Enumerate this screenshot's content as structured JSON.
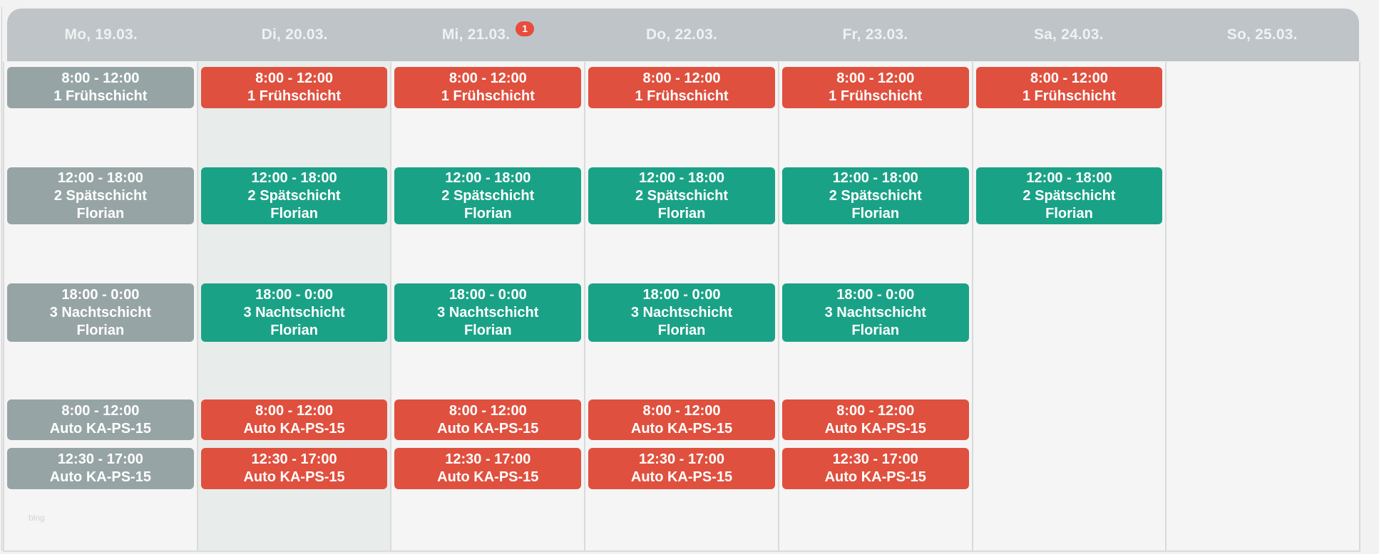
{
  "page": {
    "watermark": "blog"
  },
  "colors": {
    "red": "#e0503e",
    "green": "#1aa287",
    "gray": "#96a4a5",
    "badge": "#e74c3c",
    "header_bg": "#bfc4c8",
    "today_column_bg": "#e8eceb",
    "column_bg": "#f4f5f4"
  },
  "calendar": {
    "days": [
      {
        "label": "Mo, 19.03.",
        "badge": "",
        "today": false,
        "shifts": [
          {
            "slot": 1,
            "time": "8:00 - 12:00",
            "title": "1 Frühschicht",
            "person": "",
            "color": "gray"
          },
          {
            "slot": 2,
            "time": "12:00 - 18:00",
            "title": "2 Spätschicht",
            "person": "Florian",
            "color": "gray"
          },
          {
            "slot": 3,
            "time": "18:00 - 0:00",
            "title": "3 Nachtschicht",
            "person": "Florian",
            "color": "gray"
          },
          {
            "slot": 4,
            "time": "8:00 - 12:00",
            "title": "Auto KA-PS-15",
            "person": "",
            "color": "gray"
          },
          {
            "slot": 5,
            "time": "12:30 - 17:00",
            "title": "Auto KA-PS-15",
            "person": "",
            "color": "gray"
          }
        ]
      },
      {
        "label": "Di, 20.03.",
        "badge": "",
        "today": true,
        "shifts": [
          {
            "slot": 1,
            "time": "8:00 - 12:00",
            "title": "1 Frühschicht",
            "person": "",
            "color": "red"
          },
          {
            "slot": 2,
            "time": "12:00 - 18:00",
            "title": "2 Spätschicht",
            "person": "Florian",
            "color": "green"
          },
          {
            "slot": 3,
            "time": "18:00 - 0:00",
            "title": "3 Nachtschicht",
            "person": "Florian",
            "color": "green"
          },
          {
            "slot": 4,
            "time": "8:00 - 12:00",
            "title": "Auto KA-PS-15",
            "person": "",
            "color": "red"
          },
          {
            "slot": 5,
            "time": "12:30 - 17:00",
            "title": "Auto KA-PS-15",
            "person": "",
            "color": "red"
          }
        ]
      },
      {
        "label": "Mi, 21.03.",
        "badge": "1",
        "today": false,
        "shifts": [
          {
            "slot": 1,
            "time": "8:00 - 12:00",
            "title": "1 Frühschicht",
            "person": "",
            "color": "red"
          },
          {
            "slot": 2,
            "time": "12:00 - 18:00",
            "title": "2 Spätschicht",
            "person": "Florian",
            "color": "green"
          },
          {
            "slot": 3,
            "time": "18:00 - 0:00",
            "title": "3 Nachtschicht",
            "person": "Florian",
            "color": "green"
          },
          {
            "slot": 4,
            "time": "8:00 - 12:00",
            "title": "Auto KA-PS-15",
            "person": "",
            "color": "red"
          },
          {
            "slot": 5,
            "time": "12:30 - 17:00",
            "title": "Auto KA-PS-15",
            "person": "",
            "color": "red"
          }
        ]
      },
      {
        "label": "Do, 22.03.",
        "badge": "",
        "today": false,
        "shifts": [
          {
            "slot": 1,
            "time": "8:00 - 12:00",
            "title": "1 Frühschicht",
            "person": "",
            "color": "red"
          },
          {
            "slot": 2,
            "time": "12:00 - 18:00",
            "title": "2 Spätschicht",
            "person": "Florian",
            "color": "green"
          },
          {
            "slot": 3,
            "time": "18:00 - 0:00",
            "title": "3 Nachtschicht",
            "person": "Florian",
            "color": "green"
          },
          {
            "slot": 4,
            "time": "8:00 - 12:00",
            "title": "Auto KA-PS-15",
            "person": "",
            "color": "red"
          },
          {
            "slot": 5,
            "time": "12:30 - 17:00",
            "title": "Auto KA-PS-15",
            "person": "",
            "color": "red"
          }
        ]
      },
      {
        "label": "Fr, 23.03.",
        "badge": "",
        "today": false,
        "shifts": [
          {
            "slot": 1,
            "time": "8:00 - 12:00",
            "title": "1 Frühschicht",
            "person": "",
            "color": "red"
          },
          {
            "slot": 2,
            "time": "12:00 - 18:00",
            "title": "2 Spätschicht",
            "person": "Florian",
            "color": "green"
          },
          {
            "slot": 3,
            "time": "18:00 - 0:00",
            "title": "3 Nachtschicht",
            "person": "Florian",
            "color": "green"
          },
          {
            "slot": 4,
            "time": "8:00 - 12:00",
            "title": "Auto KA-PS-15",
            "person": "",
            "color": "red"
          },
          {
            "slot": 5,
            "time": "12:30 - 17:00",
            "title": "Auto KA-PS-15",
            "person": "",
            "color": "red"
          }
        ]
      },
      {
        "label": "Sa, 24.03.",
        "badge": "",
        "today": false,
        "shifts": [
          {
            "slot": 1,
            "time": "8:00 - 12:00",
            "title": "1 Frühschicht",
            "person": "",
            "color": "red"
          },
          {
            "slot": 2,
            "time": "12:00 - 18:00",
            "title": "2 Spätschicht",
            "person": "Florian",
            "color": "green"
          }
        ]
      },
      {
        "label": "So, 25.03.",
        "badge": "",
        "today": false,
        "shifts": []
      }
    ]
  }
}
